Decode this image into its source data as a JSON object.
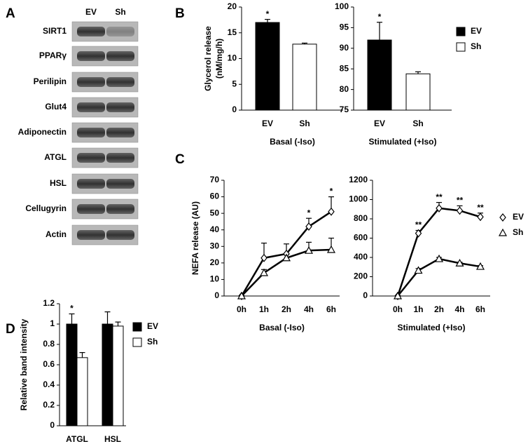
{
  "panel_labels": [
    "A",
    "B",
    "C",
    "D"
  ],
  "blot": {
    "columns": [
      "EV",
      "Sh"
    ],
    "rows": [
      "SIRT1",
      "PPARγ",
      "Perilipin",
      "Glut4",
      "Adiponectin",
      "ATGL",
      "HSL",
      "Cellugyrin",
      "Actin"
    ]
  },
  "chart_data": [
    {
      "type": "bar",
      "ylabel": [
        "Glycerol release",
        "(nM/mg/h)"
      ],
      "xlabel": "Basal (-Iso)",
      "categories": [
        "EV",
        "Sh"
      ],
      "values": [
        17,
        12.8
      ],
      "errors": [
        0.6,
        0.2
      ],
      "colors": [
        "#000000",
        "#ffffff"
      ],
      "significance": [
        "*",
        null
      ],
      "ylim": [
        0,
        20
      ],
      "yticks": [
        0,
        5,
        10,
        15,
        20
      ]
    },
    {
      "type": "bar",
      "xlabel": "Stimulated (+Iso)",
      "categories": [
        "EV",
        "Sh"
      ],
      "values": [
        92,
        83.8
      ],
      "errors": [
        4.3,
        0.5
      ],
      "colors": [
        "#000000",
        "#ffffff"
      ],
      "significance": [
        "*",
        null
      ],
      "ylim": [
        75,
        100
      ],
      "yticks": [
        75,
        80,
        85,
        90,
        95,
        100
      ],
      "legend": [
        {
          "name": "EV",
          "color": "#000000"
        },
        {
          "name": "Sh",
          "color": "#ffffff"
        }
      ]
    },
    {
      "type": "line",
      "ylabel": "NEFA release (AU)",
      "xlabel": "Basal (-Iso)",
      "categories": [
        "0h",
        "1h",
        "2h",
        "4h",
        "6h"
      ],
      "series": [
        {
          "name": "EV",
          "marker": "diamond",
          "values": [
            0,
            23,
            25.5,
            42,
            51
          ],
          "errors": [
            0,
            9,
            6,
            5,
            9
          ]
        },
        {
          "name": "Sh",
          "marker": "triangle",
          "values": [
            0,
            14,
            23,
            27.5,
            28
          ],
          "errors": [
            0,
            2,
            2,
            5,
            7
          ]
        }
      ],
      "significance": [
        null,
        null,
        null,
        "*",
        "*"
      ],
      "ylim": [
        0,
        70
      ],
      "yticks": [
        0,
        10,
        20,
        30,
        40,
        50,
        60,
        70
      ]
    },
    {
      "type": "line",
      "xlabel": "Stimulated (+Iso)",
      "categories": [
        "0h",
        "1h",
        "2h",
        "4h",
        "6h"
      ],
      "series": [
        {
          "name": "EV",
          "marker": "diamond",
          "values": [
            0,
            650,
            910,
            885,
            820
          ],
          "errors": [
            0,
            30,
            60,
            50,
            40
          ]
        },
        {
          "name": "Sh",
          "marker": "triangle",
          "values": [
            0,
            265,
            385,
            340,
            305
          ],
          "errors": [
            0,
            20,
            15,
            10,
            10
          ]
        }
      ],
      "significance": [
        null,
        "**",
        "**",
        "**",
        "**"
      ],
      "ylim": [
        0,
        1200
      ],
      "yticks": [
        0,
        200,
        400,
        600,
        800,
        1000,
        1200
      ],
      "show_legend": true
    },
    {
      "type": "bar",
      "ylabel": "Relative band intensity",
      "categories": [
        "ATGL",
        "HSL"
      ],
      "series": [
        {
          "name": "EV",
          "color": "#000000",
          "values": [
            1,
            1
          ],
          "errors": [
            0.1,
            0.12
          ],
          "significance": [
            "*",
            null
          ]
        },
        {
          "name": "Sh",
          "color": "#ffffff",
          "values": [
            0.67,
            0.98
          ],
          "errors": [
            0.05,
            0.04
          ]
        }
      ],
      "ylim": [
        0,
        1.2
      ],
      "yticks": [
        0,
        0.2,
        0.4,
        0.6,
        0.8,
        1,
        1.2
      ],
      "show_legend": true
    }
  ]
}
